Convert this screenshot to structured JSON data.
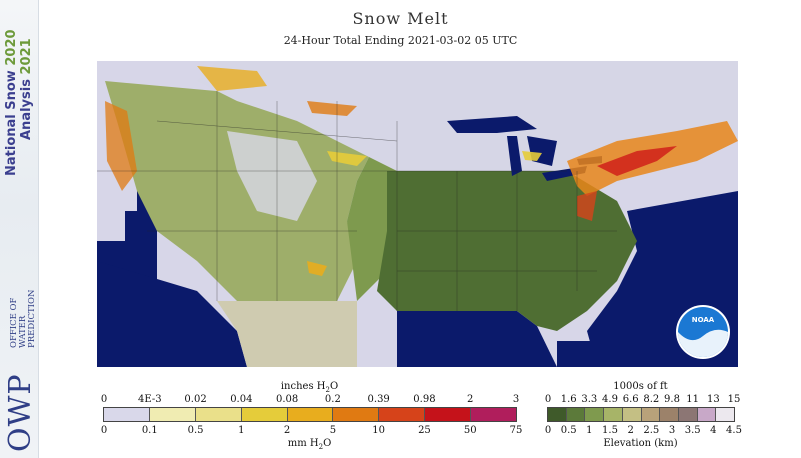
{
  "header": {
    "title": "Snow Melt",
    "subtitle": "24-Hour Total Ending 2021-03-02 05 UTC"
  },
  "sidebar": {
    "product_name": "National Snow",
    "product_year": "2020",
    "product_name2": "Analysis",
    "product_year2": "2021",
    "org_logo": "OWP",
    "org_line1": "OFFICE OF",
    "org_line2": "WATER",
    "org_line3": "PREDICTION"
  },
  "map": {
    "logo_text": "NOAA",
    "colors": {
      "ocean": "#0b1a6b",
      "no_data": "#cfcbb0",
      "snow_cover": "#d6d6e6"
    }
  },
  "legend_melt": {
    "title_top": "inches H",
    "title_top_sub": "2",
    "title_top_tail": "O",
    "title_bottom": "mm H",
    "title_bottom_sub": "2",
    "title_bottom_tail": "O",
    "inch_ticks": [
      "0",
      "4E-3",
      "0.02",
      "0.04",
      "0.08",
      "0.2",
      "0.39",
      "0.98",
      "2",
      "3"
    ],
    "mm_ticks": [
      "0",
      "0.1",
      "0.5",
      "1",
      "2",
      "5",
      "10",
      "25",
      "50",
      "75"
    ],
    "colors": [
      "#d9d8ea",
      "#f0ecb2",
      "#eae08a",
      "#e5cc3a",
      "#e8ad1e",
      "#e07a12",
      "#d6431a",
      "#c5121a",
      "#b01e5c"
    ]
  },
  "legend_elev": {
    "title_top": "1000s of ft",
    "title_bottom": "Elevation (km)",
    "ft_ticks": [
      "0",
      "1.6",
      "3.3",
      "4.9",
      "6.6",
      "8.2",
      "9.8",
      "11",
      "13",
      "15"
    ],
    "km_ticks": [
      "0",
      "0.5",
      "1",
      "1.5",
      "2",
      "2.5",
      "3",
      "3.5",
      "4",
      "4.5"
    ],
    "colors": [
      "#3f5a2a",
      "#5c7a3a",
      "#7f9a4e",
      "#a7b468",
      "#c4bf84",
      "#b8a27a",
      "#9c826a",
      "#8c7674",
      "#c8a8c8",
      "#ece8ee"
    ]
  }
}
